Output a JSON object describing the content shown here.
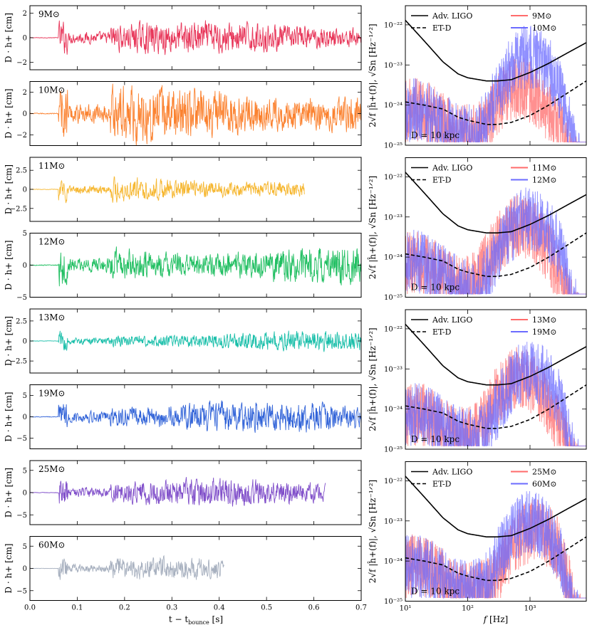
{
  "colors": {
    "9": "#e8375a",
    "10": "#fb8230",
    "11": "#f6b731",
    "12": "#21bf62",
    "13": "#1bbfaa",
    "19": "#3163d8",
    "25": "#8150ca",
    "60": "#a7b0bf",
    "red_spec": "#ff6b6b",
    "blue_spec": "#6b6bff",
    "detector": "#000000"
  },
  "chart_data": [
    {
      "type": "line",
      "subplot": "time-series",
      "models": [
        {
          "key": "9",
          "label": "9M⊙",
          "end_t": 0.7,
          "amplitude": 1.3,
          "onset": 0.06,
          "yticks": [
            -2,
            0,
            2
          ],
          "ylim": [
            -2.6,
            2.6
          ]
        },
        {
          "key": "10",
          "label": "10M⊙",
          "end_t": 0.7,
          "amplitude": 2.6,
          "onset": 0.06,
          "yticks": [
            -2,
            0,
            2
          ],
          "ylim": [
            -3,
            3
          ]
        },
        {
          "key": "11",
          "label": "11M⊙",
          "end_t": 0.58,
          "amplitude": 1.6,
          "onset": 0.06,
          "yticks": [
            -2.5,
            0.0,
            2.5
          ],
          "ylim": [
            -4.2,
            4.2
          ]
        },
        {
          "key": "12",
          "label": "12M⊙",
          "end_t": 0.7,
          "amplitude": 3.2,
          "onset": 0.06,
          "yticks": [
            -5,
            0,
            5
          ],
          "ylim": [
            -5,
            5
          ]
        },
        {
          "key": "13",
          "label": "13M⊙",
          "end_t": 0.7,
          "amplitude": 1.2,
          "onset": 0.06,
          "yticks": [
            -2.5,
            0.0,
            2.5
          ],
          "ylim": [
            -4,
            4
          ]
        },
        {
          "key": "19",
          "label": "19M⊙",
          "end_t": 0.7,
          "amplitude": 3.5,
          "onset": 0.06,
          "yticks": [
            -5,
            0,
            5
          ],
          "ylim": [
            -7.5,
            7.5
          ]
        },
        {
          "key": "25",
          "label": "25M⊙",
          "end_t": 0.625,
          "amplitude": 3.0,
          "onset": 0.06,
          "yticks": [
            -5,
            0,
            5
          ],
          "ylim": [
            -7.2,
            7.2
          ]
        },
        {
          "key": "60",
          "label": "60M⊙",
          "end_t": 0.41,
          "amplitude": 2.5,
          "onset": 0.06,
          "yticks": [
            -5,
            0,
            5
          ],
          "ylim": [
            -7.2,
            7.2
          ]
        }
      ],
      "xlim": [
        0.0,
        0.7
      ],
      "xticks": [
        "0.0",
        "0.1",
        "0.2",
        "0.3",
        "0.4",
        "0.5",
        "0.6",
        "0.7"
      ],
      "xlabel": "t − t_bounce [s]",
      "ylabel": "D · h+ [cm]"
    },
    {
      "type": "line",
      "subplot": "spectra",
      "xscale": "log",
      "yscale": "log",
      "xlim": [
        10,
        8000
      ],
      "ylim": [
        1e-25,
        3e-22
      ],
      "xticks": [
        "10¹",
        "10²",
        "10³"
      ],
      "yticks": [
        "10⁻²²",
        "10⁻²³",
        "10⁻²⁴",
        "10⁻²⁵"
      ],
      "xlabel": "f [Hz]",
      "ylabel": "2√f |ĥ+(f)|,  √Sn [Hz⁻¹ᐟ²]",
      "annotation": "D = 10 kpc",
      "legend_detectors": [
        "Adv. LIGO",
        "ET-D"
      ],
      "panels": [
        {
          "red": "9M⊙",
          "blue": "10M⊙",
          "red_key": "9",
          "blue_key": "10"
        },
        {
          "red": "11M⊙",
          "blue": "12M⊙",
          "red_key": "11",
          "blue_key": "12"
        },
        {
          "red": "13M⊙",
          "blue": "19M⊙",
          "red_key": "13",
          "blue_key": "19"
        },
        {
          "red": "25M⊙",
          "blue": "60M⊙",
          "red_key": "25",
          "blue_key": "60"
        }
      ],
      "advligo": {
        "f": [
          10,
          20,
          40,
          70,
          100,
          200,
          300,
          500,
          1000,
          2000,
          4000,
          8000
        ],
        "S": [
          1.3e-22,
          4e-23,
          1.2e-23,
          6e-24,
          4.8e-24,
          4e-24,
          4e-24,
          4.3e-24,
          6.5e-24,
          1.1e-23,
          2e-23,
          3.6e-23
        ]
      },
      "etd": {
        "f": [
          10,
          20,
          40,
          70,
          100,
          200,
          300,
          500,
          1000,
          2000,
          4000,
          8000
        ],
        "S": [
          1.2e-24,
          1e-24,
          8e-25,
          5e-25,
          4.2e-25,
          3.3e-25,
          3.3e-25,
          3.7e-25,
          5.5e-25,
          1e-24,
          2e-24,
          4e-24
        ]
      }
    }
  ]
}
